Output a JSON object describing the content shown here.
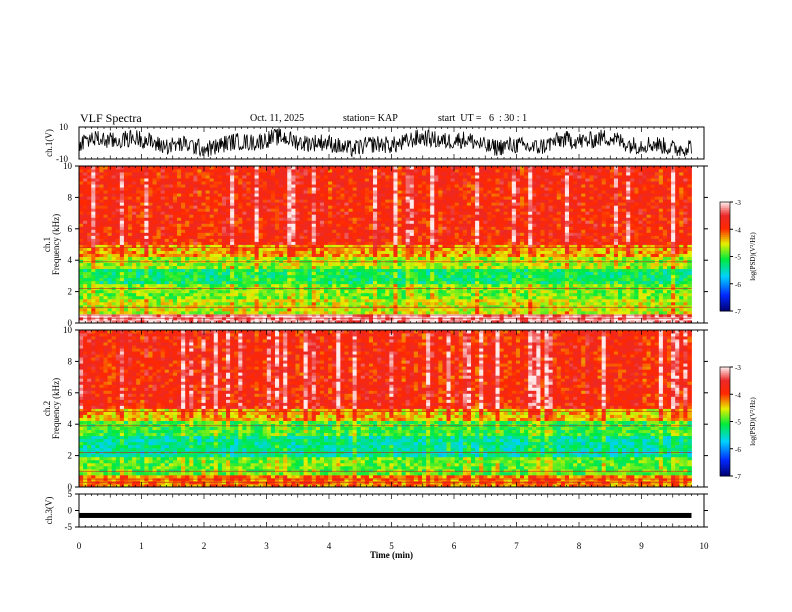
{
  "header": {
    "title": "VLF Spectra",
    "date": "Oct. 11, 2025",
    "station": "station= KAP",
    "start": "start  UT =   6  : 30 : 1"
  },
  "chart_data": [
    {
      "type": "line",
      "name": "ch1-waveform",
      "ylabel": "ch.1(V)",
      "ylim": [
        -10,
        10
      ],
      "yticks": [
        "10",
        "-10"
      ],
      "xlim": [
        0,
        10
      ],
      "description_free": true
    },
    {
      "type": "heatmap",
      "name": "ch1-spectrogram",
      "ylabel": "ch.1\nFrequency (kHz)",
      "ylim": [
        0,
        10
      ],
      "yticks": [
        "0",
        "2",
        "4",
        "6",
        "8",
        "10"
      ],
      "xlim": [
        0,
        9.8
      ],
      "bands": [
        {
          "fmin": 0.0,
          "fmax": 0.6,
          "level": -3.2
        },
        {
          "fmin": 0.6,
          "fmax": 1.5,
          "level": -4.6
        },
        {
          "fmin": 1.5,
          "fmax": 2.5,
          "level": -4.8
        },
        {
          "fmin": 2.5,
          "fmax": 3.5,
          "level": -5.2
        },
        {
          "fmin": 3.5,
          "fmax": 4.2,
          "level": -4.7
        },
        {
          "fmin": 4.2,
          "fmax": 5.0,
          "level": -4.3
        },
        {
          "fmin": 5.0,
          "fmax": 10.0,
          "level": -3.8
        }
      ]
    },
    {
      "type": "heatmap",
      "name": "ch2-spectrogram",
      "ylabel": "ch.2\nFrequency (kHz)",
      "ylim": [
        0,
        10
      ],
      "yticks": [
        "0",
        "2",
        "4",
        "6",
        "8",
        "10"
      ],
      "xlim": [
        0,
        9.8
      ],
      "bands": [
        {
          "fmin": 0.0,
          "fmax": 0.8,
          "level": -4.2
        },
        {
          "fmin": 0.8,
          "fmax": 2.0,
          "level": -4.9
        },
        {
          "fmin": 2.0,
          "fmax": 3.2,
          "level": -5.4
        },
        {
          "fmin": 3.2,
          "fmax": 4.2,
          "level": -5.0
        },
        {
          "fmin": 4.2,
          "fmax": 5.0,
          "level": -4.4
        },
        {
          "fmin": 5.0,
          "fmax": 10.0,
          "level": -3.8
        }
      ]
    },
    {
      "type": "line",
      "name": "ch3-signal",
      "ylabel": "ch.3(V)",
      "ylim": [
        -5,
        5
      ],
      "yticks": [
        "5",
        "0",
        "-5"
      ],
      "xlim": [
        0,
        10
      ],
      "xticks": [
        "0",
        "1",
        "2",
        "3",
        "4",
        "5",
        "6",
        "7",
        "8",
        "9",
        "10"
      ],
      "xlabel": "Time (min)",
      "level": -1.5,
      "xend": 9.8
    }
  ],
  "colorbar": {
    "label": "log(PSD)(V²/Hz)",
    "range": [
      -7,
      -3
    ],
    "ticks": [
      "-3",
      "-4",
      "-5",
      "-6",
      "-7"
    ]
  }
}
